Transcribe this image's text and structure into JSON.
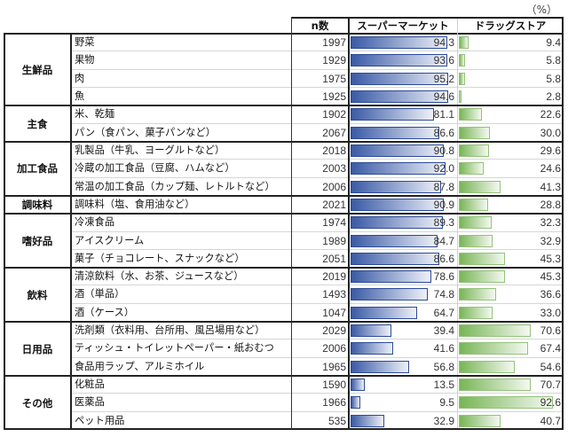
{
  "chart_data": {
    "type": "table",
    "title": "",
    "unit_label": "（%）",
    "columns": {
      "n_label": "n数"
    },
    "series": [
      {
        "key": "supermarket",
        "name": "スーパーマーケット",
        "color": "#3a5aa6",
        "fade": "#eef1f9",
        "border": "#2c4a94"
      },
      {
        "key": "drugstore",
        "name": "ドラッグストア",
        "color": "#78b556",
        "fade": "#f4f9f0",
        "border": "#93c27a"
      }
    ],
    "xlim": [
      0,
      100
    ],
    "groups": [
      {
        "category": "生鮮品",
        "rows": [
          {
            "item": "野菜",
            "n": 1997,
            "supermarket": 94.3,
            "drugstore": 9.4
          },
          {
            "item": "果物",
            "n": 1929,
            "supermarket": 93.6,
            "drugstore": 5.8
          },
          {
            "item": "肉",
            "n": 1975,
            "supermarket": 95.2,
            "drugstore": 5.8
          },
          {
            "item": "魚",
            "n": 1925,
            "supermarket": 94.6,
            "drugstore": 2.8
          }
        ]
      },
      {
        "category": "主食",
        "rows": [
          {
            "item": "米、乾麺",
            "n": 1902,
            "supermarket": 81.1,
            "drugstore": 22.6
          },
          {
            "item": "パン（食パン、菓子パンなど）",
            "n": 2067,
            "supermarket": 86.6,
            "drugstore": 30.0
          }
        ]
      },
      {
        "category": "加工食品",
        "rows": [
          {
            "item": "乳製品（牛乳、ヨーグルトなど）",
            "n": 2018,
            "supermarket": 90.8,
            "drugstore": 29.6
          },
          {
            "item": "冷蔵の加工食品（豆腐、ハムなど）",
            "n": 2003,
            "supermarket": 92.0,
            "drugstore": 24.6
          },
          {
            "item": "常温の加工食品（カップ麺、レトルトなど）",
            "n": 2006,
            "supermarket": 87.8,
            "drugstore": 41.3
          }
        ]
      },
      {
        "category": "調味料",
        "rows": [
          {
            "item": "調味料（塩、食用油など）",
            "n": 2021,
            "supermarket": 90.9,
            "drugstore": 28.8
          }
        ]
      },
      {
        "category": "嗜好品",
        "rows": [
          {
            "item": "冷凍食品",
            "n": 1974,
            "supermarket": 89.3,
            "drugstore": 32.3
          },
          {
            "item": "アイスクリーム",
            "n": 1989,
            "supermarket": 84.7,
            "drugstore": 32.9
          },
          {
            "item": "菓子（チョコレート、スナックなど）",
            "n": 2051,
            "supermarket": 86.6,
            "drugstore": 45.3
          }
        ]
      },
      {
        "category": "飲料",
        "rows": [
          {
            "item": "清涼飲料（水、お茶、ジュースなど）",
            "n": 2019,
            "supermarket": 78.6,
            "drugstore": 45.3
          },
          {
            "item": "酒（単品）",
            "n": 1493,
            "supermarket": 74.8,
            "drugstore": 36.6
          },
          {
            "item": "酒（ケース）",
            "n": 1047,
            "supermarket": 64.7,
            "drugstore": 33.0
          }
        ]
      },
      {
        "category": "日用品",
        "rows": [
          {
            "item": "洗剤類（衣料用、台所用、風呂場用など）",
            "n": 2029,
            "supermarket": 39.4,
            "drugstore": 70.6
          },
          {
            "item": "ティッシュ・トイレットペーパー・紙おむつ",
            "n": 2006,
            "supermarket": 41.6,
            "drugstore": 67.4
          },
          {
            "item": "食品用ラップ、アルミホイル",
            "n": 1965,
            "supermarket": 56.8,
            "drugstore": 54.6
          }
        ]
      },
      {
        "category": "その他",
        "rows": [
          {
            "item": "化粧品",
            "n": 1590,
            "supermarket": 13.5,
            "drugstore": 70.7
          },
          {
            "item": "医薬品",
            "n": 1966,
            "supermarket": 9.5,
            "drugstore": 92.6
          },
          {
            "item": "ペット用品",
            "n": 535,
            "supermarket": 32.9,
            "drugstore": 40.7
          }
        ]
      }
    ]
  }
}
